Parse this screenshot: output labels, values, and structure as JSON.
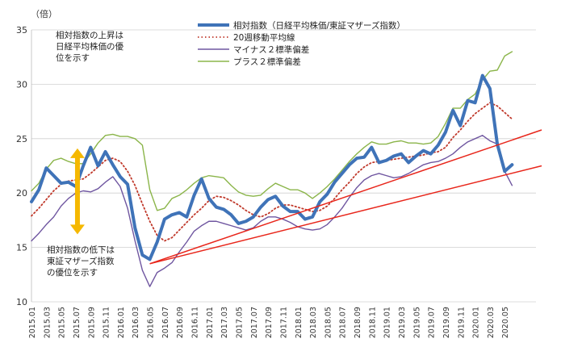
{
  "chart_data": {
    "type": "line",
    "unit_label": "（倍）",
    "ylim": [
      10,
      35
    ],
    "yticks": [
      10,
      15,
      20,
      25,
      30,
      35
    ],
    "x_tick_labels": [
      "2015.01",
      "2015.03",
      "2015.05",
      "2015.07",
      "2015.09",
      "2015.11",
      "2016.01",
      "2016.03",
      "2016.05",
      "2016.07",
      "2016.09",
      "2016.11",
      "2017.01",
      "2017.03",
      "2017.05",
      "2017.07",
      "2017.09",
      "2017.11",
      "2018.01",
      "2018.03",
      "2018.05",
      "2018.07",
      "2018.09",
      "2018.11",
      "2019.01",
      "2019.03",
      "2019.05",
      "2019.07",
      "2019.09",
      "2019.11",
      "2020.01",
      "2020.03",
      "2020.05"
    ],
    "x_months": [
      0,
      1,
      2,
      3,
      4,
      5,
      6,
      7,
      8,
      9,
      10,
      11,
      12,
      13,
      14,
      15,
      16,
      17,
      18,
      19,
      20,
      21,
      22,
      23,
      24,
      25,
      26,
      27,
      28,
      29,
      30,
      31,
      32,
      33,
      34,
      35,
      36,
      37,
      38,
      39,
      40,
      41,
      42,
      43,
      44,
      45,
      46,
      47,
      48,
      49,
      50,
      51,
      52,
      53,
      54,
      55,
      56,
      57,
      58,
      59,
      60,
      61,
      62,
      63,
      64,
      65
    ],
    "series": [
      {
        "name": "相対指数（日経平均株価/東証マザーズ指数）",
        "color": "#3f73b8",
        "style": "thick",
        "values": [
          19.2,
          20.3,
          22.3,
          21.6,
          20.9,
          21.0,
          20.6,
          22.5,
          24.2,
          22.5,
          23.8,
          22.6,
          21.5,
          20.8,
          16.8,
          14.3,
          13.9,
          15.5,
          17.6,
          18.0,
          18.2,
          17.8,
          19.8,
          21.3,
          19.5,
          18.7,
          18.5,
          18.0,
          17.2,
          17.4,
          17.8,
          18.7,
          19.4,
          19.7,
          18.8,
          18.3,
          18.3,
          17.6,
          17.8,
          19.2,
          19.9,
          21.0,
          21.8,
          22.6,
          23.2,
          23.3,
          24.2,
          22.8,
          23.0,
          23.4,
          23.6,
          22.8,
          23.4,
          23.9,
          23.6,
          24.4,
          25.6,
          27.6,
          26.2,
          28.5,
          28.3,
          30.8,
          29.6,
          24.5,
          22.0,
          22.6
        ]
      },
      {
        "name": "20週移動平均線",
        "color": "#c0392b",
        "style": "dotted",
        "values": [
          17.9,
          18.6,
          19.4,
          20.2,
          20.8,
          21.1,
          21.2,
          21.3,
          21.8,
          22.4,
          23.0,
          23.2,
          22.9,
          22.0,
          20.7,
          19.0,
          17.4,
          16.1,
          15.6,
          15.9,
          16.6,
          17.3,
          18.0,
          18.6,
          19.3,
          19.7,
          19.6,
          19.3,
          18.9,
          18.4,
          18.0,
          17.8,
          18.1,
          18.6,
          18.9,
          18.9,
          18.7,
          18.5,
          18.3,
          18.4,
          18.8,
          19.5,
          20.3,
          21.0,
          21.8,
          22.4,
          22.8,
          22.9,
          23.0,
          23.1,
          23.2,
          23.3,
          23.4,
          23.5,
          23.7,
          23.8,
          24.2,
          25.1,
          25.8,
          26.6,
          27.3,
          27.8,
          28.3,
          28.0,
          27.4,
          26.8
        ]
      },
      {
        "name": "マイナス２標準偏差",
        "color": "#6f56a0",
        "style": "thin",
        "values": [
          15.6,
          16.3,
          17.1,
          17.8,
          18.8,
          19.5,
          20.0,
          20.2,
          20.1,
          20.4,
          21.0,
          21.5,
          20.6,
          18.6,
          15.6,
          12.9,
          11.4,
          12.7,
          13.1,
          13.6,
          14.6,
          15.5,
          16.5,
          17.0,
          17.4,
          17.4,
          17.2,
          17.0,
          16.8,
          16.6,
          16.8,
          17.4,
          17.8,
          17.8,
          17.6,
          17.3,
          16.9,
          16.7,
          16.6,
          16.7,
          17.1,
          17.8,
          18.6,
          19.6,
          20.5,
          21.2,
          21.6,
          21.8,
          21.6,
          21.4,
          21.5,
          21.8,
          22.2,
          22.6,
          22.8,
          22.9,
          23.2,
          23.6,
          24.2,
          24.7,
          25.0,
          25.3,
          24.8,
          24.5,
          22.0,
          20.7
        ]
      },
      {
        "name": "プラス２標準偏差",
        "color": "#8bb54a",
        "style": "thin",
        "values": [
          20.2,
          20.9,
          22.2,
          23.0,
          23.2,
          22.9,
          22.7,
          22.7,
          23.6,
          24.6,
          25.3,
          25.4,
          25.2,
          25.2,
          25.0,
          24.4,
          20.3,
          18.4,
          18.6,
          19.5,
          19.8,
          20.3,
          20.9,
          21.4,
          21.6,
          21.5,
          21.4,
          20.7,
          20.1,
          19.8,
          19.7,
          19.8,
          20.4,
          20.9,
          20.6,
          20.3,
          20.3,
          20.0,
          19.5,
          20.0,
          20.6,
          21.3,
          22.1,
          22.9,
          23.6,
          24.2,
          24.7,
          24.5,
          24.5,
          24.7,
          24.8,
          24.6,
          24.6,
          24.5,
          24.6,
          25.2,
          26.4,
          27.8,
          27.8,
          28.6,
          29.1,
          30.4,
          31.2,
          31.3,
          32.6,
          33.0
        ]
      }
    ],
    "trend_lines": [
      {
        "color": "#e8261b",
        "x": [
          16,
          69
        ],
        "y": [
          13.5,
          25.8
        ]
      },
      {
        "color": "#e8261b",
        "x": [
          16,
          69
        ],
        "y": [
          13.5,
          22.5
        ]
      }
    ],
    "annotations": {
      "top": [
        "相対指数の上昇は",
        "日経平均株価の優",
        "位を示す"
      ],
      "bottom": [
        "相対指数の低下は",
        "東証マザーズ指数",
        "の優位を示す"
      ],
      "arrow_color": "#f5b800",
      "arrow_from_y": 24.1,
      "arrow_to_y": 16.2,
      "arrow_x_month": 6
    },
    "legend_position": "top-center"
  }
}
